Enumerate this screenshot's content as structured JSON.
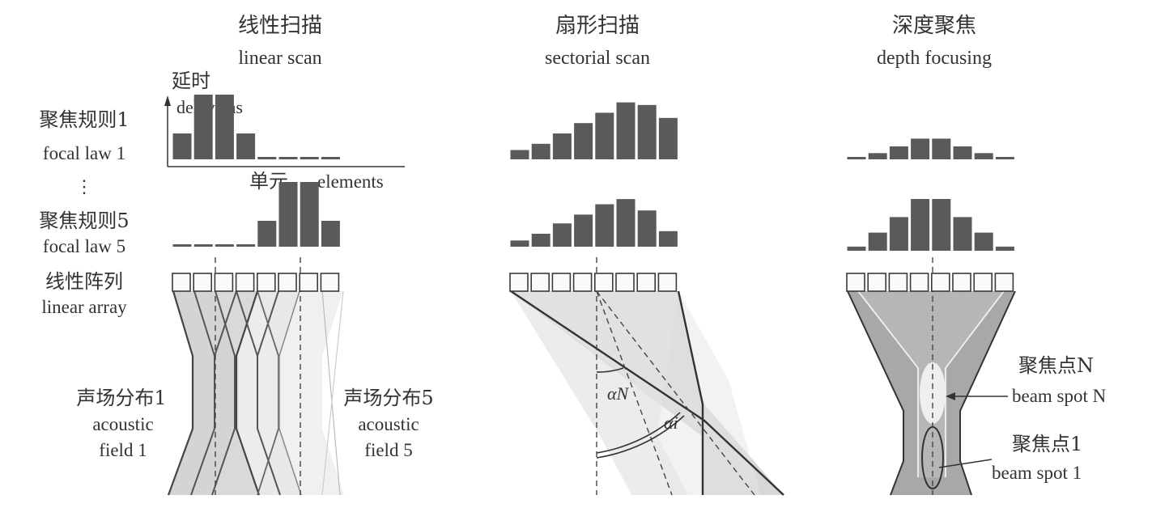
{
  "panels": {
    "linear": {
      "title_cn": "线性扫描",
      "title_en": "linear scan"
    },
    "sector": {
      "title_cn": "扇形扫描",
      "title_en": "sectorial scan"
    },
    "depth": {
      "title_cn": "深度聚焦",
      "title_en": "depth focusing"
    }
  },
  "labels": {
    "delay_cn": "延时",
    "delay_en": "delays/ns",
    "focal1_cn": "聚焦规则1",
    "focal1_en": "focal law 1",
    "dots": "⋮",
    "focal5_cn": "聚焦规则5",
    "focal5_en": "focal law 5",
    "elements_cn": "单元",
    "elements_en": "elements",
    "array_cn": "线性阵列",
    "array_en": "linear array",
    "field1_cn": "声场分布1",
    "field1_en1": "acoustic",
    "field1_en2": "field 1",
    "field5_cn": "声场分布5",
    "field5_en1": "acoustic",
    "field5_en2": "field 5",
    "alpha_n": "αN",
    "alpha_i": "αi",
    "spotN_cn": "聚焦点N",
    "spotN_en": "beam spot N",
    "spot1_cn": "聚焦点1",
    "spot1_en": "beam spot 1"
  },
  "delays": {
    "linear_law1": [
      0.5,
      1.25,
      1.25,
      0.5,
      0,
      0,
      0,
      0
    ],
    "linear_law5": [
      0,
      0,
      0,
      0,
      0.5,
      1.25,
      1.25,
      0.5
    ],
    "sector_law1": [
      0.18,
      0.3,
      0.5,
      0.7,
      0.9,
      1.1,
      1.05,
      0.8
    ],
    "sector_law5": [
      0.12,
      0.25,
      0.45,
      0.62,
      0.82,
      0.92,
      0.7,
      0.3
    ],
    "depth_law1": [
      0.02,
      0.12,
      0.25,
      0.4,
      0.4,
      0.25,
      0.12,
      0.02
    ],
    "depth_law5": [
      0.08,
      0.35,
      0.65,
      1.0,
      1.0,
      0.65,
      0.35,
      0.08
    ]
  }
}
